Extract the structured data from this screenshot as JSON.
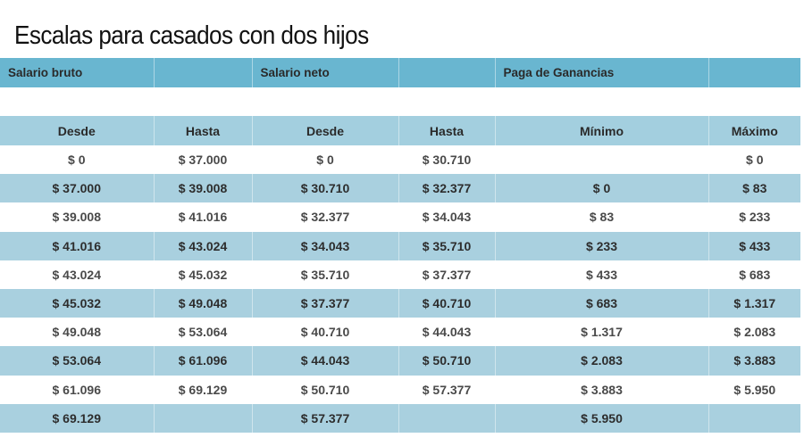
{
  "title": "Escalas para casados con dos hijos",
  "group_headers": [
    "Salario bruto",
    "",
    "Salario neto",
    "",
    "Paga de Ganancias",
    ""
  ],
  "column_headers": [
    "Desde",
    "Hasta",
    "Desde",
    "Hasta",
    "Mínimo",
    "Máximo"
  ],
  "rows": [
    [
      "$ 0",
      "$ 37.000",
      "$ 0",
      "$ 30.710",
      "",
      "$ 0"
    ],
    [
      "$ 37.000",
      "$ 39.008",
      "$ 30.710",
      "$ 32.377",
      "$ 0",
      "$ 83"
    ],
    [
      "$ 39.008",
      "$ 41.016",
      "$ 32.377",
      "$ 34.043",
      "$ 83",
      "$ 233"
    ],
    [
      "$ 41.016",
      "$ 43.024",
      "$ 34.043",
      "$ 35.710",
      "$ 233",
      "$ 433"
    ],
    [
      "$ 43.024",
      "$ 45.032",
      "$ 35.710",
      "$ 37.377",
      "$ 433",
      "$ 683"
    ],
    [
      "$ 45.032",
      "$ 49.048",
      "$ 37.377",
      "$ 40.710",
      "$ 683",
      "$ 1.317"
    ],
    [
      "$ 49.048",
      "$ 53.064",
      "$ 40.710",
      "$ 44.043",
      "$ 1.317",
      "$ 2.083"
    ],
    [
      "$ 53.064",
      "$ 61.096",
      "$ 44.043",
      "$ 50.710",
      "$ 2.083",
      "$ 3.883"
    ],
    [
      "$ 61.096",
      "$ 69.129",
      "$ 50.710",
      "$ 57.377",
      "$ 3.883",
      "$ 5.950"
    ],
    [
      "$ 69.129",
      "",
      "$ 57.377",
      "",
      "$ 5.950",
      ""
    ]
  ],
  "colors": {
    "group_header": "#69b6d0",
    "column_header": "#a3cfdf",
    "shaded_row": "#a9d0df",
    "plain_row": "#ffffff"
  }
}
